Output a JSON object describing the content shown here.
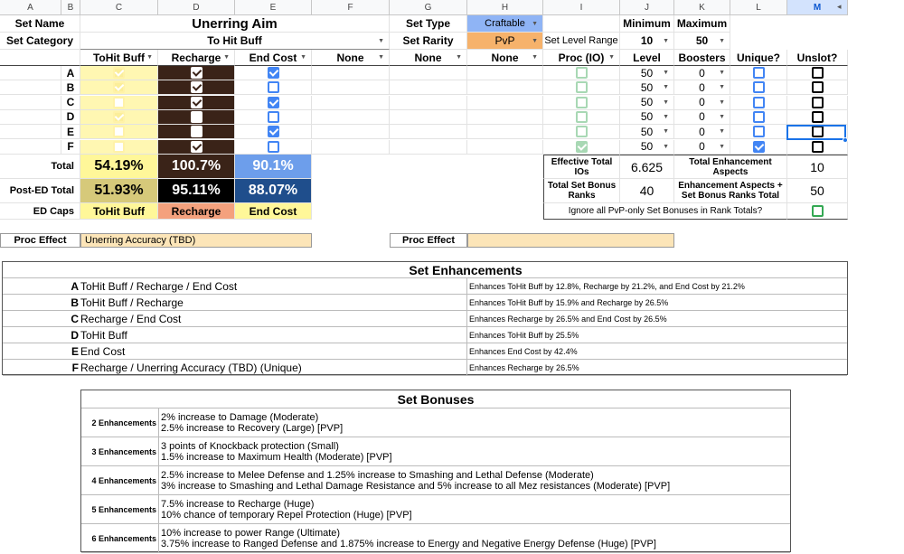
{
  "columns": [
    "A",
    "B",
    "C",
    "D",
    "E",
    "F",
    "G",
    "H",
    "I",
    "J",
    "K",
    "L",
    "M"
  ],
  "header": {
    "set_name_label": "Set Name",
    "set_name": "Unerring Aim",
    "set_type_label": "Set Type",
    "set_type": "Craftable",
    "min_label": "Minimum",
    "max_label": "Maximum",
    "set_category_label": "Set Category",
    "set_category": "To Hit Buff",
    "set_rarity_label": "Set Rarity",
    "set_rarity": "PvP",
    "level_range_label": "Set Level Range",
    "min_level": "10",
    "max_level": "50"
  },
  "col_heads": {
    "c": "ToHit Buff",
    "d": "Recharge",
    "e": "End Cost",
    "f": "None",
    "g": "None",
    "h": "None",
    "i": "Proc (IO)",
    "j": "Level",
    "k": "Boosters",
    "l": "Unique?",
    "m": "Unslot?"
  },
  "rows": [
    {
      "letter": "A",
      "level": "50",
      "boosters": "0"
    },
    {
      "letter": "B",
      "level": "50",
      "boosters": "0"
    },
    {
      "letter": "C",
      "level": "50",
      "boosters": "0"
    },
    {
      "letter": "D",
      "level": "50",
      "boosters": "0"
    },
    {
      "letter": "E",
      "level": "50",
      "boosters": "0"
    },
    {
      "letter": "F",
      "level": "50",
      "boosters": "0"
    }
  ],
  "totals": {
    "total_label": "Total",
    "tohit": "54.19%",
    "recharge": "100.7%",
    "endcost": "90.1%",
    "post_ed_label": "Post-ED Total",
    "post_tohit": "51.93%",
    "post_recharge": "95.11%",
    "post_endcost": "88.07%",
    "ed_caps_label": "ED Caps",
    "cap_tohit": "ToHit Buff",
    "cap_recharge": "Recharge",
    "cap_endcost": "End Cost"
  },
  "stats": {
    "eff_label": "Effective Total IOs",
    "eff": "6.625",
    "tea_label": "Total Enhancement Aspects",
    "tea": "10",
    "tsbr_label": "Total Set Bonus Ranks",
    "tsbr": "40",
    "combo_label": "Enhancement Aspects + Set Bonus Ranks Total",
    "combo": "50",
    "ignore_label": "Ignore all PvP-only Set Bonuses in Rank Totals?"
  },
  "proc": {
    "label": "Proc Effect",
    "value": "Unerring Accuracy (TBD)",
    "label2": "Proc Effect",
    "value2": ""
  },
  "enhancements": {
    "title": "Set Enhancements",
    "items": [
      {
        "letter": "A",
        "name": "ToHit Buff / Recharge / End Cost",
        "desc": "Enhances ToHit Buff by 12.8%, Recharge by 21.2%, and End Cost by 21.2%"
      },
      {
        "letter": "B",
        "name": "ToHit Buff / Recharge",
        "desc": "Enhances ToHit Buff by 15.9% and Recharge by 26.5%"
      },
      {
        "letter": "C",
        "name": "Recharge / End Cost",
        "desc": "Enhances Recharge by 26.5% and End Cost by 26.5%"
      },
      {
        "letter": "D",
        "name": "ToHit Buff",
        "desc": "Enhances ToHit Buff by 25.5%"
      },
      {
        "letter": "E",
        "name": "End Cost",
        "desc": "Enhances End Cost by 42.4%"
      },
      {
        "letter": "F",
        "name": "Recharge / Unerring Accuracy (TBD) (Unique)",
        "desc": "Enhances Recharge by 26.5%"
      }
    ]
  },
  "bonuses": {
    "title": "Set Bonuses",
    "items": [
      {
        "label": "2 Enhancements",
        "l1": "2% increase to Damage (Moderate)",
        "l2": "2.5% increase to Recovery (Large) [PVP]"
      },
      {
        "label": "3 Enhancements",
        "l1": "3 points of Knockback protection (Small)",
        "l2": "1.5% increase to Maximum Health (Moderate) [PVP]"
      },
      {
        "label": "4 Enhancements",
        "l1": "2.5% increase to Melee Defense and 1.25% increase to Smashing and Lethal Defense (Moderate)",
        "l2": "3% increase to Smashing and Lethal Damage Resistance and 5% increase to all Mez resistances (Moderate) [PVP]"
      },
      {
        "label": "5 Enhancements",
        "l1": "7.5% increase to Recharge (Huge)",
        "l2": "10% chance of temporary Repel Protection (Huge) [PVP]"
      },
      {
        "label": "6 Enhancements",
        "l1": "10% increase to power Range (Ultimate)",
        "l2": "3.75% increase to Ranged Defense and 1.875% increase to Energy and Negative Energy Defense (Huge) [PVP]"
      }
    ]
  },
  "checks": {
    "c": [
      true,
      true,
      false,
      true,
      false,
      false
    ],
    "d": [
      true,
      true,
      true,
      false,
      false,
      true
    ],
    "e": [
      true,
      false,
      true,
      false,
      true,
      false
    ],
    "i": [
      false,
      false,
      false,
      false,
      false,
      true
    ],
    "l": [
      false,
      false,
      false,
      false,
      false,
      true
    ],
    "m": [
      false,
      false,
      false,
      false,
      false,
      false
    ],
    "ignore": false
  },
  "colors": {
    "tohit_light": "#fff7b2",
    "tohit_total": "#fff799",
    "tohit_post": "#d6c97a",
    "recharge_total": "#3a2318",
    "recharge_cap": "#f4a17d",
    "end_total": "#6d9eeb",
    "end_post": "#1f4e8c",
    "end_cap": "#fff799",
    "craftable": "#8fb4f5",
    "pvp": "#f6b26b",
    "proc_bg": "#fce5b8"
  }
}
